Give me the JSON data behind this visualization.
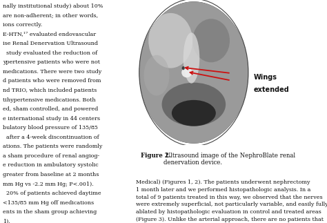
{
  "bg_color": "#ffffff",
  "figure_caption_bg": "#f2e8ea",
  "figure_caption_bold": "Figure 2.",
  "figure_caption_normal": " Ultrasound image of the NephroBlate renal denervation device.",
  "wings_label_line1": "Wings",
  "wings_label_line2": "extended",
  "left_text_lines": [
    "nally institutional study) about 10%",
    "are non-adherent; in other words,",
    "ions correctly.",
    "E-HTN,¹⁷ evaluated endovascular",
    "ise Renal Denervation Ultrasound",
    "  study evaluated the reduction of",
    "ypertensive patients who were not",
    "medications. There were two study",
    "d patients who were removed from",
    "nd TRIO, which included patients",
    "tihypertensive medications. Both",
    "ed, sham controlled, and powered",
    "e international study in 44 centers",
    "bulatory blood pressure of 135/85",
    "  after a 4-week discontinuation of",
    "ations. The patients were randomly",
    "a sham procedure of renal angiog-",
    "e reduction in ambulatory systolic",
    "greater from baseline at 2 months",
    "mm Hg vs -2.2 mm Hg; P<.001).",
    "  20% of patients achieved daytime",
    "<135/85 mm Hg off medications",
    "ents in the sham group achieving",
    "1)."
  ],
  "bottom_left_lines": [
    "Medical) (Figures 1, 2). The patients underwent nephrectomy",
    "1 month later and we performed histopathologic analysis. In a",
    "total of 9 patients treated in this way, we observed that the nerves",
    "were extremely superficial, not particularly variable, and easily fully",
    "ablated by histopathologic evaluation in control and treated areas",
    "(Figure 3). Unlike the arterial approach, there are no patients that"
  ],
  "arrow_color": "#cc1111",
  "image_frame_color": "#111111",
  "us_bg": "#2a2a2a",
  "us_circle_color": "#b0b0b0"
}
